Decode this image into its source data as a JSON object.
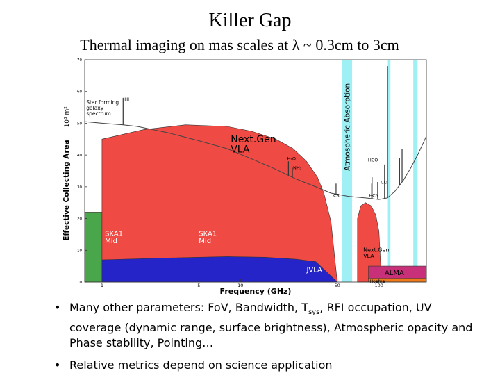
{
  "slide": {
    "title": "Killer Gap",
    "subtitle": "Thermal imaging on mas scales at λ ~ 0.3cm  to 3cm",
    "bullets": [
      {
        "pre": "Many other parameters: FoV, Bandwidth, T",
        "sub": "sys",
        "post": ", RFI occupation, UV coverage (dynamic range, surface brightness), Atmospheric opacity and Phase stability, Pointing…"
      },
      {
        "pre": "Relative metrics depend on science application",
        "sub": "",
        "post": ""
      }
    ]
  },
  "chart_data": {
    "type": "area",
    "xlabel": "Frequency (GHz)",
    "ylabel": "Effective Collecting Area",
    "ylabel_unit": "10³ m²",
    "x_scale": "log",
    "xlim": [
      0.75,
      220
    ],
    "ylim": [
      0,
      70
    ],
    "xticks": [
      1,
      5,
      10,
      50,
      100
    ],
    "yticks": [
      0,
      10,
      20,
      30,
      40,
      50,
      60,
      70
    ],
    "atmospheric_label": "Atmospheric Absorption",
    "atmospheric_bands": [
      [
        54,
        64
      ],
      [
        116,
        121
      ],
      [
        177,
        190
      ]
    ],
    "regions": [
      {
        "name": "SKA1 Mid",
        "color": "#4aa64a",
        "points": [
          [
            0.75,
            0
          ],
          [
            0.75,
            22
          ],
          [
            1.0,
            22
          ],
          [
            1.0,
            0
          ]
        ]
      },
      {
        "name": "SKA1 Mid",
        "color": "#f04a44",
        "points": [
          [
            1.0,
            0
          ],
          [
            1.0,
            22
          ],
          [
            3.0,
            22
          ],
          [
            3.0,
            14
          ],
          [
            9.5,
            14
          ],
          [
            9.5,
            0
          ]
        ]
      },
      {
        "name": "Next.Gen\nVLA",
        "color": "#f04a44",
        "points": [
          [
            1.0,
            0
          ],
          [
            1.0,
            45
          ],
          [
            2,
            48
          ],
          [
            4,
            49.5
          ],
          [
            8,
            49
          ],
          [
            12,
            47.5
          ],
          [
            18,
            45
          ],
          [
            24,
            42
          ],
          [
            30,
            38
          ],
          [
            36,
            33
          ],
          [
            40,
            28
          ],
          [
            45,
            19
          ],
          [
            50,
            0
          ]
        ]
      },
      {
        "name": "JVLA",
        "color": "#2424c8",
        "points": [
          [
            1.0,
            0
          ],
          [
            1.0,
            7
          ],
          [
            3,
            7.6
          ],
          [
            8,
            8
          ],
          [
            15,
            7.8
          ],
          [
            25,
            7.2
          ],
          [
            35,
            6.4
          ],
          [
            50,
            0
          ]
        ]
      },
      {
        "name": "Next.Gen\nVLA",
        "color": "#f04a44",
        "points": [
          [
            70,
            0
          ],
          [
            70,
            20
          ],
          [
            74,
            24
          ],
          [
            80,
            25
          ],
          [
            88,
            24
          ],
          [
            95,
            21
          ],
          [
            100,
            16
          ],
          [
            103,
            5
          ],
          [
            105,
            0
          ]
        ]
      },
      {
        "name": "ALMA",
        "color": "#c8307a",
        "points": [
          [
            84,
            1
          ],
          [
            84,
            5
          ],
          [
            220,
            5
          ],
          [
            220,
            1
          ]
        ]
      },
      {
        "name": "",
        "color": "#f07a1a",
        "points": [
          [
            84,
            0
          ],
          [
            84,
            1.2
          ],
          [
            220,
            1.2
          ],
          [
            220,
            0
          ]
        ]
      }
    ],
    "spectrum": {
      "name": "Star forming galaxy spectrum",
      "points": [
        [
          0.75,
          50.5
        ],
        [
          1.0,
          50
        ],
        [
          1.42,
          49.5
        ],
        [
          1.8,
          49
        ],
        [
          3,
          47
        ],
        [
          5,
          44.5
        ],
        [
          8,
          42
        ],
        [
          12,
          38.8
        ],
        [
          18,
          35.5
        ],
        [
          25,
          32.5
        ],
        [
          35,
          30
        ],
        [
          45,
          28
        ],
        [
          60,
          27
        ],
        [
          80,
          26.5
        ],
        [
          100,
          26
        ],
        [
          115,
          26.5
        ],
        [
          130,
          28.5
        ],
        [
          150,
          32
        ],
        [
          170,
          36
        ],
        [
          190,
          40
        ],
        [
          210,
          44
        ],
        [
          220,
          46
        ]
      ]
    },
    "lines": [
      {
        "label": "HI",
        "x": 1.42,
        "peak": 58
      },
      {
        "label": "H₂O",
        "x": 22.2,
        "peak": 38
      },
      {
        "label": "NH₃",
        "x": 23.7,
        "peak": 36
      },
      {
        "label": "CS",
        "x": 49,
        "peak": 31
      },
      {
        "label": "HCN",
        "x": 88.6,
        "peak": 31
      },
      {
        "label": "HCO",
        "x": 89.2,
        "peak": 33
      },
      {
        "label": "CO",
        "x": 115.3,
        "peak": 68
      },
      {
        "label": "",
        "x": 97.9,
        "peak": 31.5
      },
      {
        "label": "",
        "x": 109.8,
        "peak": 37
      },
      {
        "label": "",
        "x": 146.9,
        "peak": 42
      },
      {
        "label": "",
        "x": 140.8,
        "peak": 39
      }
    ],
    "region_labels": [
      {
        "text": "SKA1\nMid",
        "x": 1.05,
        "y": 14.5,
        "color": "#ffffff",
        "size": 10
      },
      {
        "text": "SKA1\nMid",
        "x": 5.0,
        "y": 14.5,
        "color": "#ffffff",
        "size": 10
      },
      {
        "text": "Next.Gen\nVLA",
        "x": 8.5,
        "y": 44,
        "color": "#000000",
        "size": 14
      },
      {
        "text": "JVLA",
        "x": 30,
        "y": 3.2,
        "color": "#ffffff",
        "size": 10
      },
      {
        "text": "Next.Gen\nVLA",
        "x": 77,
        "y": 9.5,
        "color": "#000000",
        "size": 8
      },
      {
        "text": "ALMA",
        "x": 110,
        "y": 2.2,
        "color": "#000000",
        "size": 10
      },
      {
        "text": "Hoerne",
        "x": 86,
        "y": -0.2,
        "color": "#000000",
        "size": 6
      },
      {
        "text": "Star forming\ngalaxy\nspectrum",
        "x": 0.77,
        "y": 56,
        "color": "#000000",
        "size": 7.5
      }
    ]
  }
}
